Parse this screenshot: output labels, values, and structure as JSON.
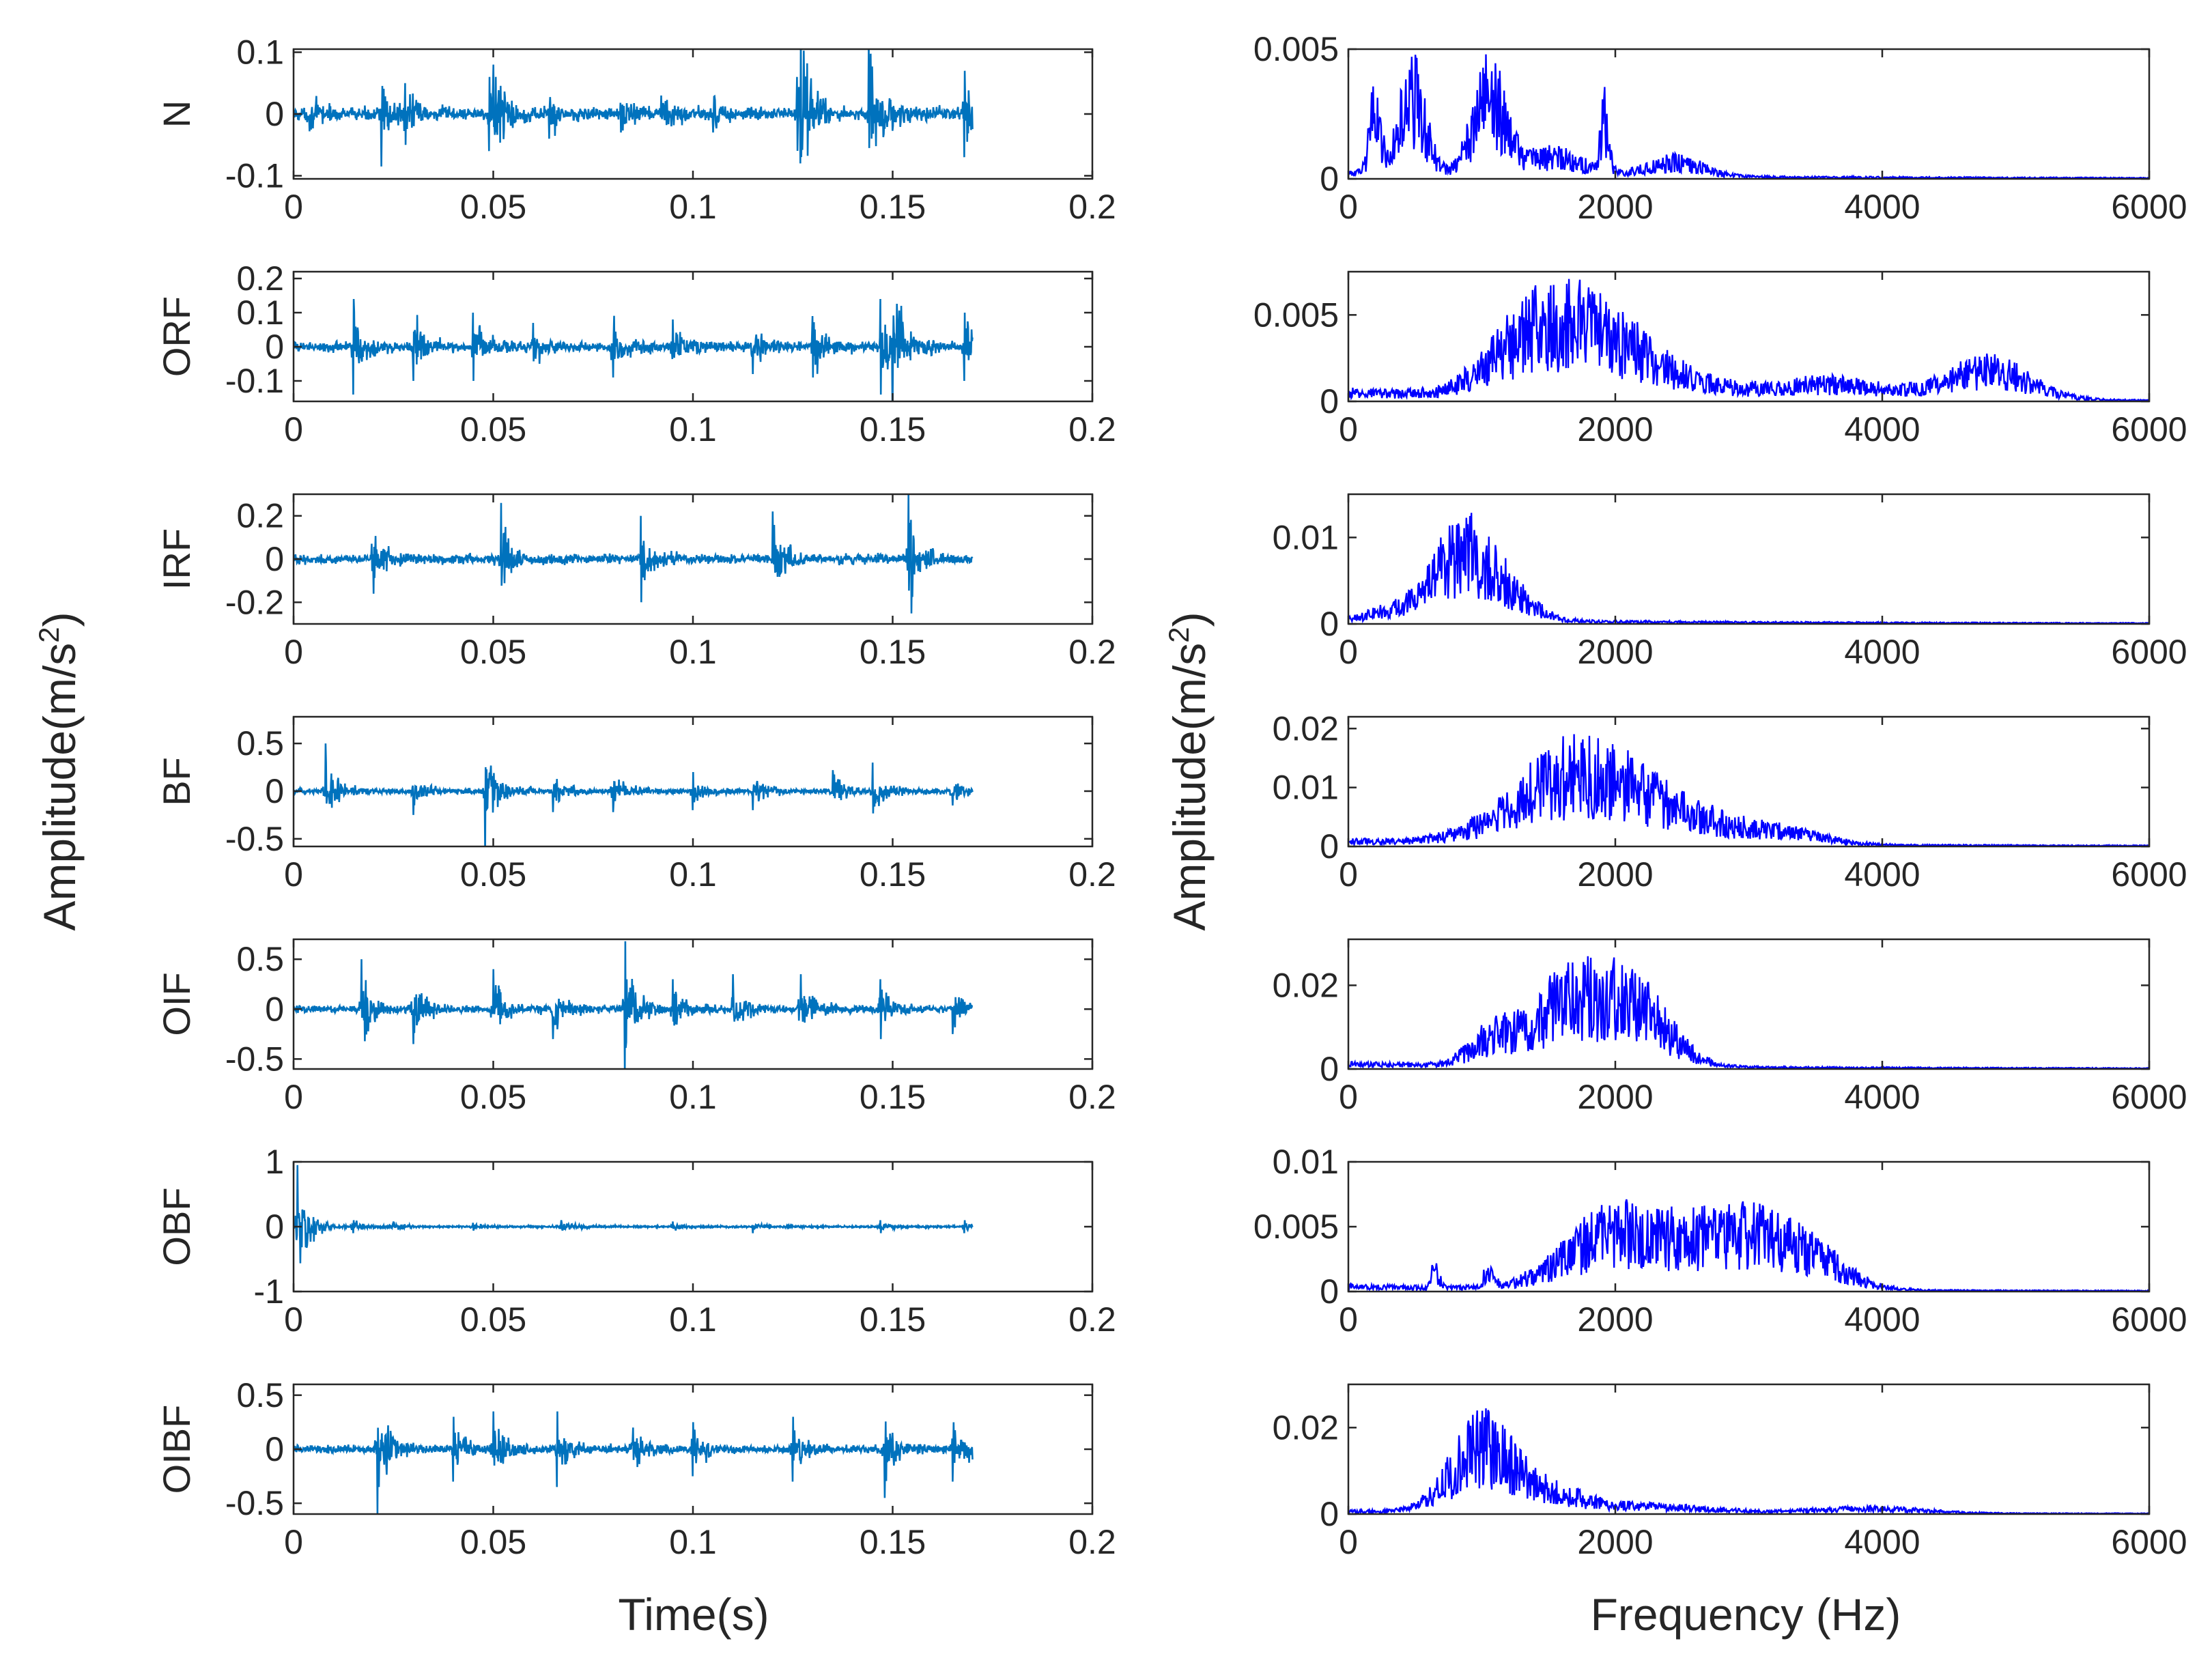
{
  "colors": {
    "time_signal": "#0072BD",
    "spectrum_signal": "#0000FF",
    "axes": "#262626"
  },
  "chart_data": {
    "type": "line",
    "labels": {
      "time_xlabel": "Time(s)",
      "freq_xlabel": "Frequency (Hz)",
      "time_ylabel": "Amplitude(m/s",
      "freq_ylabel": "Amplitude(m/s",
      "ylabel_exponent": "2",
      "ylabel_close": ")"
    },
    "time_x": {
      "xlim": [
        0,
        0.2
      ],
      "ticks": [
        0,
        0.05,
        0.1,
        0.15,
        0.2
      ],
      "tick_labels": [
        "0",
        "0.05",
        "0.1",
        "0.15",
        "0.2"
      ],
      "signal_end": 0.17
    },
    "freq_x": {
      "xlim": [
        0,
        6000
      ],
      "ticks": [
        0,
        2000,
        4000,
        6000
      ],
      "tick_labels": [
        "0",
        "2000",
        "4000",
        "6000"
      ]
    },
    "conditions": [
      {
        "name": "N",
        "time": {
          "ylim": [
            -0.105,
            0.105
          ],
          "ticks": [
            -0.1,
            0,
            0.1
          ],
          "tick_labels": [
            "-0.1",
            "0",
            "0.1"
          ],
          "base": 0.014,
          "bursts": [
            [
              0.004,
              0.028
            ],
            [
              0.022,
              0.085
            ],
            [
              0.028,
              0.05
            ],
            [
              0.049,
              0.06
            ],
            [
              0.05,
              0.08
            ],
            [
              0.064,
              0.04
            ],
            [
              0.082,
              0.03
            ],
            [
              0.092,
              0.03
            ],
            [
              0.105,
              0.03
            ],
            [
              0.126,
              0.06
            ],
            [
              0.127,
              0.13
            ],
            [
              0.144,
              0.12
            ],
            [
              0.168,
              0.07
            ]
          ]
        },
        "spectrum": {
          "ylim": [
            0,
            0.005
          ],
          "ticks": [
            0,
            0.005
          ],
          "tick_labels": [
            "0",
            "0.005"
          ],
          "peaks": [
            [
              200,
              0.0035,
              40
            ],
            [
              480,
              0.0042,
              100
            ],
            [
              1050,
              0.0042,
              120
            ],
            [
              1520,
              0.001,
              250
            ],
            [
              1920,
              0.0028,
              30
            ],
            [
              2450,
              0.0008,
              200
            ]
          ],
          "noise": 0.0003
        }
      },
      {
        "name": "ORF",
        "time": {
          "ylim": [
            -0.16,
            0.22
          ],
          "ticks": [
            -0.1,
            0,
            0.1,
            0.2
          ],
          "tick_labels": [
            "-0.1",
            "0",
            "0.1",
            "0.2"
          ],
          "base": 0.02,
          "bursts": [
            [
              0.015,
              0.14
            ],
            [
              0.03,
              0.1
            ],
            [
              0.045,
              0.1
            ],
            [
              0.06,
              0.07
            ],
            [
              0.08,
              0.09
            ],
            [
              0.095,
              0.08
            ],
            [
              0.115,
              0.08
            ],
            [
              0.13,
              0.09
            ],
            [
              0.147,
              0.14
            ],
            [
              0.15,
              0.22
            ],
            [
              0.168,
              0.1
            ]
          ]
        },
        "spectrum": {
          "ylim": [
            0,
            0.0075
          ],
          "ticks": [
            0,
            0.005
          ],
          "tick_labels": [
            "0",
            "0.005"
          ],
          "peaks": [
            [
              1400,
              0.0048,
              320
            ],
            [
              1900,
              0.0035,
              300
            ],
            [
              2400,
              0.0015,
              350
            ],
            [
              3600,
              0.0012,
              450
            ],
            [
              4800,
              0.0024,
              300
            ]
          ],
          "noise": 0.0007
        }
      },
      {
        "name": "IRF",
        "time": {
          "ylim": [
            -0.3,
            0.3
          ],
          "ticks": [
            -0.2,
            0,
            0.2
          ],
          "tick_labels": [
            "-0.2",
            "0",
            "0.2"
          ],
          "base": 0.03,
          "bursts": [
            [
              0.02,
              0.16
            ],
            [
              0.052,
              0.26
            ],
            [
              0.087,
              0.2
            ],
            [
              0.12,
              0.22
            ],
            [
              0.154,
              0.3
            ]
          ]
        },
        "spectrum": {
          "ylim": [
            0,
            0.015
          ],
          "ticks": [
            0,
            0.01
          ],
          "tick_labels": [
            "0",
            "0.01"
          ],
          "peaks": [
            [
              850,
              0.011,
              220
            ],
            [
              1200,
              0.003,
              200
            ],
            [
              300,
              0.0012,
              150
            ]
          ],
          "noise": 0.0007
        }
      },
      {
        "name": "BF",
        "time": {
          "ylim": [
            -0.58,
            0.78
          ],
          "ticks": [
            -0.5,
            0,
            0.5
          ],
          "tick_labels": [
            "-0.5",
            "0",
            "0.5"
          ],
          "base": 0.04,
          "bursts": [
            [
              0.008,
              0.5
            ],
            [
              0.03,
              0.25
            ],
            [
              0.048,
              0.7
            ],
            [
              0.065,
              0.22
            ],
            [
              0.08,
              0.22
            ],
            [
              0.1,
              0.2
            ],
            [
              0.115,
              0.2
            ],
            [
              0.135,
              0.22
            ],
            [
              0.145,
              0.3
            ],
            [
              0.165,
              0.15
            ]
          ]
        },
        "spectrum": {
          "ylim": [
            0,
            0.022
          ],
          "ticks": [
            0,
            0.01,
            0.02
          ],
          "tick_labels": [
            "0",
            "0.01",
            "0.02"
          ],
          "peaks": [
            [
              1700,
              0.016,
              450
            ],
            [
              2500,
              0.005,
              450
            ],
            [
              3300,
              0.002,
              300
            ]
          ],
          "noise": 0.0012
        }
      },
      {
        "name": "OIF",
        "time": {
          "ylim": [
            -0.6,
            0.7
          ],
          "ticks": [
            -0.5,
            0,
            0.5
          ],
          "tick_labels": [
            "-0.5",
            "0",
            "0.5"
          ],
          "base": 0.05,
          "bursts": [
            [
              0.017,
              0.5
            ],
            [
              0.03,
              0.35
            ],
            [
              0.05,
              0.4
            ],
            [
              0.065,
              0.3
            ],
            [
              0.083,
              0.68
            ],
            [
              0.095,
              0.3
            ],
            [
              0.11,
              0.35
            ],
            [
              0.127,
              0.35
            ],
            [
              0.147,
              0.3
            ],
            [
              0.165,
              0.25
            ]
          ]
        },
        "spectrum": {
          "ylim": [
            0,
            0.031
          ],
          "ticks": [
            0,
            0.02
          ],
          "tick_labels": [
            "0",
            "0.02"
          ],
          "peaks": [
            [
              1700,
              0.022,
              350
            ],
            [
              2200,
              0.012,
              250
            ],
            [
              1050,
              0.006,
              150
            ]
          ],
          "noise": 0.0015
        }
      },
      {
        "name": "OBF",
        "time": {
          "ylim": [
            -1,
            1
          ],
          "ticks": [
            -1,
            0,
            1
          ],
          "tick_labels": [
            "-1",
            "0",
            "1"
          ],
          "base": 0.02,
          "bursts": [
            [
              0.001,
              0.95
            ],
            [
              0.015,
              0.1
            ],
            [
              0.025,
              0.08
            ],
            [
              0.045,
              0.06
            ],
            [
              0.067,
              0.1
            ],
            [
              0.095,
              0.08
            ],
            [
              0.115,
              0.1
            ],
            [
              0.147,
              0.1
            ],
            [
              0.168,
              0.1
            ]
          ]
        },
        "spectrum": {
          "ylim": [
            0,
            0.01
          ],
          "ticks": [
            0,
            0.005,
            0.01
          ],
          "tick_labels": [
            "0",
            "0.005",
            "0.01"
          ],
          "peaks": [
            [
              1950,
              0.0055,
              350
            ],
            [
              2800,
              0.0055,
              400
            ],
            [
              3400,
              0.003,
              300
            ],
            [
              650,
              0.002,
              30
            ],
            [
              1050,
              0.0015,
              40
            ]
          ],
          "noise": 0.0005
        }
      },
      {
        "name": "OIBF",
        "time": {
          "ylim": [
            -0.6,
            0.6
          ],
          "ticks": [
            -0.5,
            0,
            0.5
          ],
          "tick_labels": [
            "-0.5",
            "0",
            "0.5"
          ],
          "base": 0.05,
          "bursts": [
            [
              0.021,
              0.6
            ],
            [
              0.04,
              0.3
            ],
            [
              0.05,
              0.35
            ],
            [
              0.066,
              0.35
            ],
            [
              0.085,
              0.2
            ],
            [
              0.1,
              0.25
            ],
            [
              0.125,
              0.3
            ],
            [
              0.148,
              0.45
            ],
            [
              0.165,
              0.3
            ]
          ]
        },
        "spectrum": {
          "ylim": [
            0,
            0.03
          ],
          "ticks": [
            0,
            0.02
          ],
          "tick_labels": [
            "0",
            "0.02"
          ],
          "peaks": [
            [
              1000,
              0.021,
              230
            ],
            [
              1500,
              0.005,
              250
            ],
            [
              2200,
              0.002,
              500
            ],
            [
              3900,
              0.0015,
              400
            ]
          ],
          "noise": 0.0008
        }
      }
    ]
  }
}
